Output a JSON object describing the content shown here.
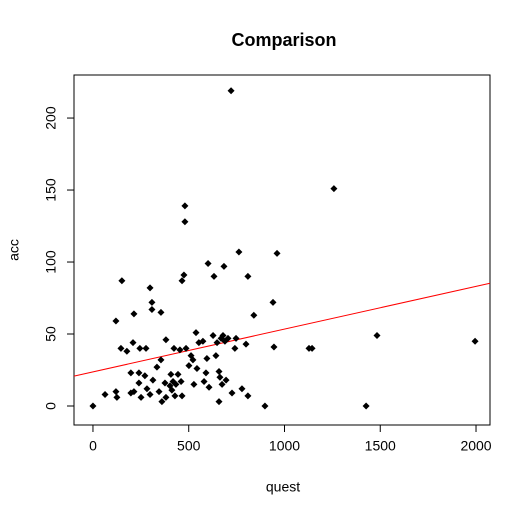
{
  "chart_data": {
    "type": "scatter",
    "title": "Comparison",
    "x_label": "quest",
    "y_label": "acc",
    "x": [
      0,
      63,
      120,
      125,
      120,
      151,
      146,
      177,
      198,
      209,
      214,
      240,
      245,
      277,
      298,
      308,
      308,
      355,
      198,
      214,
      240,
      271,
      251,
      282,
      298,
      313,
      334,
      345,
      360,
      355,
      381,
      376,
      381,
      402,
      407,
      412,
      418,
      423,
      428,
      433,
      444,
      454,
      460,
      465,
      465,
      475,
      480,
      480,
      486,
      501,
      512,
      522,
      527,
      538,
      543,
      553,
      574,
      580,
      590,
      595,
      601,
      606,
      627,
      632,
      642,
      648,
      658,
      658,
      663,
      669,
      674,
      679,
      684,
      689,
      695,
      705,
      721,
      726,
      741,
      747,
      762,
      778,
      799,
      809,
      809,
      840,
      898,
      940,
      945,
      961,
      1128,
      1144,
      1258,
      1426,
      1483,
      1995
    ],
    "y": [
      0,
      8,
      10,
      6,
      59,
      87,
      40,
      38,
      23,
      44,
      64,
      23,
      40,
      40,
      82,
      72,
      67,
      65,
      9,
      10,
      16,
      21,
      6,
      12,
      8,
      18,
      27,
      10,
      3,
      32,
      46,
      16,
      6,
      14,
      22,
      11,
      17,
      40,
      7,
      15,
      22,
      39,
      17,
      7,
      87,
      91,
      128,
      139,
      40,
      28,
      35,
      32,
      15,
      51,
      26,
      44,
      45,
      17,
      23,
      33,
      99,
      13,
      49,
      90,
      35,
      44,
      24,
      3,
      20,
      47,
      15,
      49,
      97,
      45,
      18,
      47,
      219,
      9,
      40,
      47,
      107,
      12,
      43,
      7,
      90,
      63,
      0,
      72,
      41,
      106,
      40,
      40,
      151,
      0,
      49,
      45
    ],
    "color": "#000000",
    "fit": {
      "intercept": 23.7,
      "slope": 0.0297,
      "color": "#ff0000"
    },
    "xlim": [
      -99,
      2073
    ],
    "ylim": [
      -13.2,
      229.9
    ],
    "xticks": [
      0,
      500,
      1000,
      1500,
      2000
    ],
    "yticks": [
      0,
      50,
      100,
      150,
      200
    ]
  }
}
